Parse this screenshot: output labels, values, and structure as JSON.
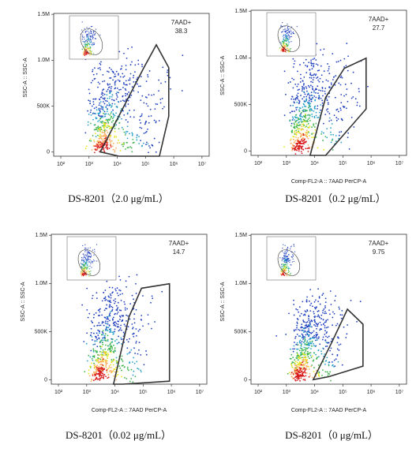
{
  "chart_data": [
    {
      "type": "density",
      "caption": "DS-8201（2.0 μg/mL）",
      "ylabel": "SSC-A :: SSC-A",
      "gate": {
        "label": "7AAD+",
        "value": 38.3
      },
      "xscale": "log",
      "xlim": [
        56,
        18000000
      ],
      "xticks": [
        {
          "value": 100,
          "label": "10²"
        },
        {
          "value": 1000,
          "label": "10³"
        },
        {
          "value": 10000,
          "label": "10⁴"
        },
        {
          "value": 100000,
          "label": "10⁵"
        },
        {
          "value": 1000000,
          "label": "10⁶"
        },
        {
          "value": 10000000,
          "label": "10⁷"
        }
      ],
      "ylim": [
        -45000,
        1510000
      ],
      "yticks": [
        0,
        {
          "value": 500000,
          "label": "500K"
        },
        {
          "value": 1000000,
          "label": "1.0M"
        },
        {
          "value": 1500000,
          "label": "1.5M"
        }
      ]
    },
    {
      "type": "density",
      "caption": "DS-8201（0.2 μg/mL）",
      "ylabel": "SSC-A :: SSC-A",
      "xlabel": "Comp-FL2-A :: 7AAD PerCP-A",
      "gate": {
        "label": "7AAD+",
        "value": 27.7
      },
      "xscale": "log",
      "xlim": [
        56,
        18000000
      ],
      "xticks": [
        {
          "value": 100,
          "label": "10²"
        },
        {
          "value": 1000,
          "label": "10³"
        },
        {
          "value": 10000,
          "label": "10⁴"
        },
        {
          "value": 100000,
          "label": "10⁵"
        },
        {
          "value": 1000000,
          "label": "10⁶"
        },
        {
          "value": 10000000,
          "label": "10⁷"
        }
      ],
      "ylim": [
        -45000,
        1510000
      ],
      "yticks": [
        0,
        {
          "value": 500000,
          "label": "500K"
        },
        {
          "value": 1000000,
          "label": "1.0M"
        },
        {
          "value": 1500000,
          "label": "1.5M"
        }
      ]
    },
    {
      "type": "density",
      "caption": "DS-8201（0.02 μg/mL）",
      "ylabel": "SSC-A :: SSC-A",
      "xlabel": "Comp-FL2-A :: 7AAD PerCP-A",
      "gate": {
        "label": "7AAD+",
        "value": 14.7
      },
      "xscale": "log",
      "xlim": [
        56,
        18000000
      ],
      "xticks": [
        {
          "value": 100,
          "label": "10²"
        },
        {
          "value": 1000,
          "label": "10³"
        },
        {
          "value": 10000,
          "label": "10⁴"
        },
        {
          "value": 100000,
          "label": "10⁵"
        },
        {
          "value": 1000000,
          "label": "10⁶"
        },
        {
          "value": 10000000,
          "label": "10⁷"
        }
      ],
      "ylim": [
        -45000,
        1510000
      ],
      "yticks": [
        0,
        {
          "value": 500000,
          "label": "500K"
        },
        {
          "value": 1000000,
          "label": "1.0M"
        },
        {
          "value": 1500000,
          "label": "1.5M"
        }
      ]
    },
    {
      "type": "density",
      "caption": "DS-8201（0 μg/mL）",
      "ylabel": "SSC-A :: SSC-A",
      "xlabel": "Comp-FL2-A :: 7AAD PerCP-A",
      "gate": {
        "label": "7AAD+",
        "value": 9.75
      },
      "xscale": "log",
      "xlim": [
        56,
        18000000
      ],
      "xticks": [
        {
          "value": 100,
          "label": "10²"
        },
        {
          "value": 1000,
          "label": "10³"
        },
        {
          "value": 10000,
          "label": "10⁴"
        },
        {
          "value": 100000,
          "label": "10⁵"
        },
        {
          "value": 1000000,
          "label": "10⁶"
        },
        {
          "value": 10000000,
          "label": "10⁷"
        }
      ],
      "ylim": [
        -45000,
        1510000
      ],
      "yticks": [
        0,
        {
          "value": 500000,
          "label": "500K"
        },
        {
          "value": 1000000,
          "label": "1.0M"
        },
        {
          "value": 1500000,
          "label": "1.5M"
        }
      ]
    }
  ]
}
